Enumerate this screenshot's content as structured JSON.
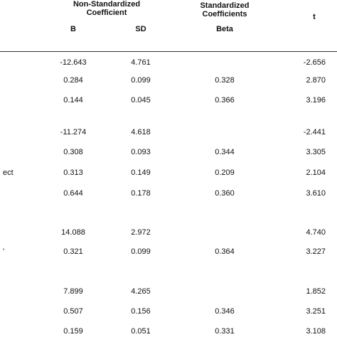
{
  "header": {
    "non_standardized": "Non-Standardized Coefficient",
    "b": "B",
    "sd": "SD",
    "standardized": "Standardized Coefficients",
    "beta": "Beta",
    "t": "t"
  },
  "table": {
    "rows": [
      [
        null,
        "-12.643",
        "4.761",
        null,
        "-2.656"
      ],
      [
        null,
        "0.284",
        "0.099",
        "0.328",
        "2.870"
      ],
      [
        null,
        "0.144",
        "0.045",
        "0.366",
        "3.196"
      ],
      [
        null,
        "-11.274",
        "4.618",
        null,
        "-2.441"
      ],
      [
        null,
        "0.308",
        "0.093",
        "0.344",
        "3.305"
      ],
      [
        "ect",
        "0.313",
        "0.149",
        "0.209",
        "2.104"
      ],
      [
        null,
        "0.644",
        "0.178",
        "0.360",
        "3.610"
      ],
      [
        null,
        "14.088",
        "2.972",
        null,
        "4.740"
      ],
      [
        "'",
        "0.321",
        "0.099",
        "0.364",
        "3.227"
      ],
      [
        null,
        "7.899",
        "4.265",
        null,
        "1.852"
      ],
      [
        null,
        "0.507",
        "0.156",
        "0.346",
        "3.251"
      ],
      [
        null,
        "0.159",
        "0.051",
        "0.331",
        "3.108"
      ]
    ]
  }
}
